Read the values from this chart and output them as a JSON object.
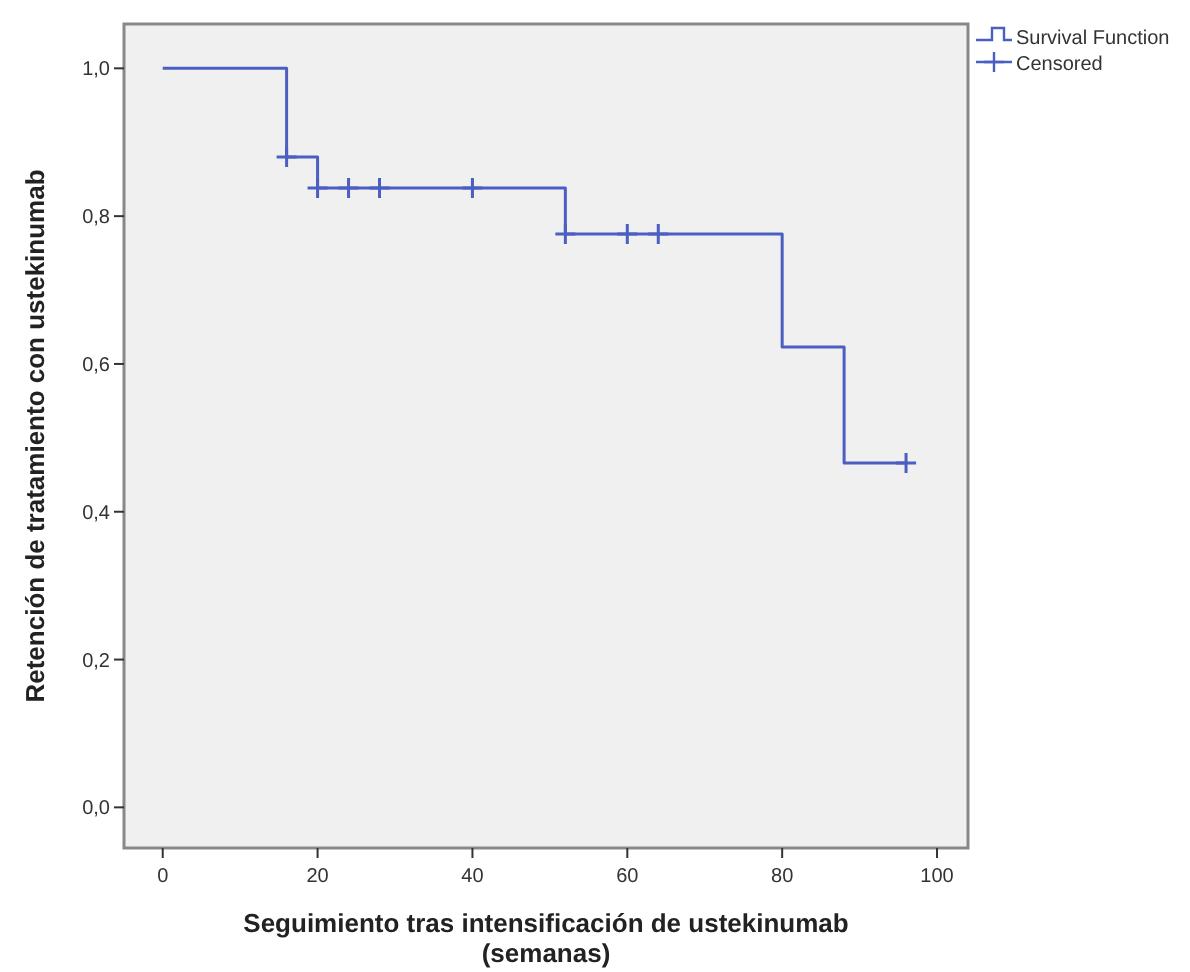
{
  "chart_data": {
    "type": "step",
    "xlabel": "Seguimiento tras intensificación de ustekinumab (semanas)",
    "ylabel": "Retención de tratamiento con ustekinumab",
    "xlim": [
      -5,
      104
    ],
    "xticks": [
      0,
      20,
      40,
      60,
      80,
      100
    ],
    "ylim": [
      -0.055,
      1.06
    ],
    "yticks": [
      {
        "value": 0,
        "label": "0,0"
      },
      {
        "value": 0.2,
        "label": "0,2"
      },
      {
        "value": 0.4,
        "label": "0,4"
      },
      {
        "value": 0.6,
        "label": "0,6"
      },
      {
        "value": 0.8,
        "label": "0,8"
      },
      {
        "value": 1,
        "label": "1,0"
      }
    ],
    "grid": false,
    "legend": "top right",
    "series": [
      {
        "name": "Survival Function",
        "color": "#4a5fc1",
        "marker": "none",
        "x": [
          0,
          16,
          20,
          52,
          80,
          88,
          96
        ],
        "values": [
          1,
          0.88,
          0.838,
          0.776,
          0.623,
          0.466,
          0.466
        ]
      },
      {
        "name": "Censored",
        "type": "scatter",
        "color": "#4a5fc1",
        "marker": "cross",
        "x": [
          16,
          20,
          24,
          28,
          40,
          52,
          60,
          64,
          96
        ],
        "values": [
          0.88,
          0.838,
          0.838,
          0.838,
          0.838,
          0.776,
          0.776,
          0.776,
          0.466
        ]
      }
    ]
  }
}
